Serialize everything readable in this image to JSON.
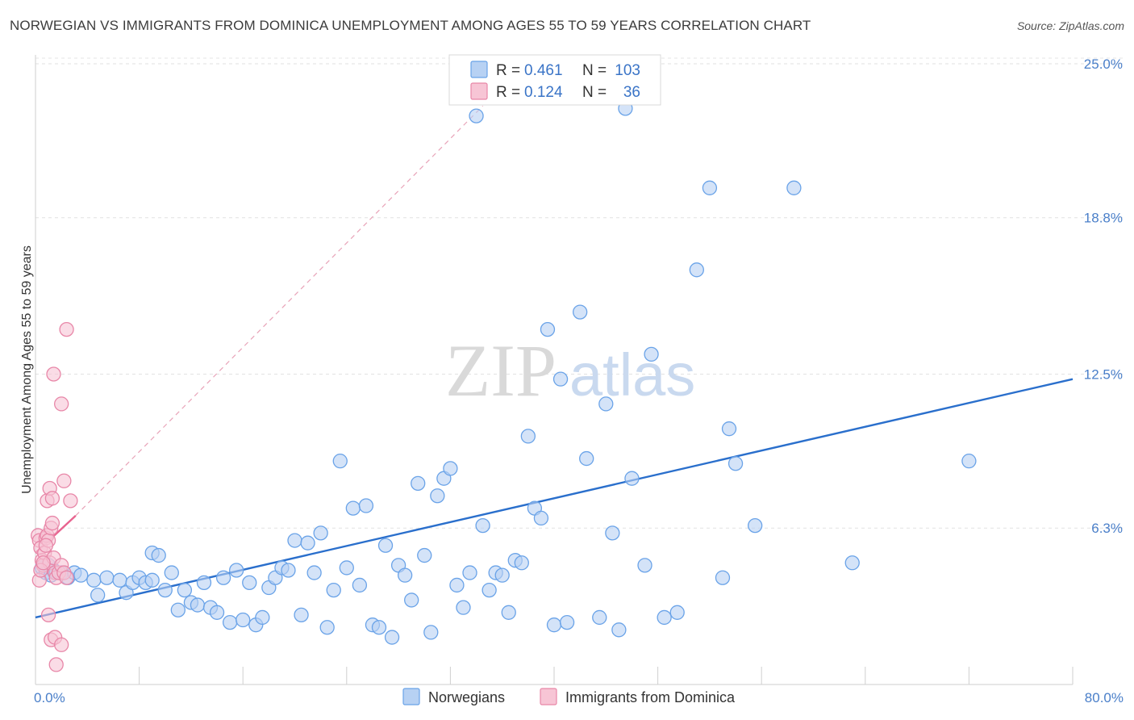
{
  "chart_data": {
    "type": "scatter",
    "title": "NORWEGIAN VS IMMIGRANTS FROM DOMINICA UNEMPLOYMENT AMONG AGES 55 TO 59 YEARS CORRELATION CHART",
    "source": "Source: ZipAtlas.com",
    "xlabel": "",
    "ylabel": "Unemployment Among Ages 55 to 59 years",
    "xlim": [
      0,
      80
    ],
    "ylim": [
      0,
      25
    ],
    "x_tick_labels": [
      "0.0%",
      "80.0%"
    ],
    "y_ticks": [
      6.3,
      12.5,
      18.8,
      25.0
    ],
    "y_tick_labels": [
      "6.3%",
      "12.5%",
      "18.8%",
      "25.0%"
    ],
    "grid": true,
    "legend_position": "top-center",
    "watermark": {
      "zip": "ZIP",
      "atlas": "atlas"
    },
    "stats_legend": [
      {
        "r_label": "R =",
        "r_value": "0.461",
        "n_label": "N =",
        "n_value": "103"
      },
      {
        "r_label": "R =",
        "r_value": "0.124",
        "n_label": "N =",
        "n_value": "36"
      }
    ],
    "series": [
      {
        "name": "Norwegians",
        "color": "#6aa3e8",
        "fill": "#b7d1f3",
        "trend": {
          "x": [
            0,
            80
          ],
          "y": [
            2.7,
            12.3
          ],
          "color": "#2a6fcc"
        },
        "points": [
          [
            0.5,
            4.7
          ],
          [
            0.8,
            4.5
          ],
          [
            1,
            4.8
          ],
          [
            1.2,
            4.4
          ],
          [
            1.4,
            4.6
          ],
          [
            1.6,
            4.5
          ],
          [
            2,
            4.5
          ],
          [
            2.5,
            4.3
          ],
          [
            3,
            4.5
          ],
          [
            3.5,
            4.4
          ],
          [
            4.5,
            4.2
          ],
          [
            5.5,
            4.3
          ],
          [
            4.8,
            3.6
          ],
          [
            6.5,
            4.2
          ],
          [
            7,
            3.7
          ],
          [
            7.5,
            4.1
          ],
          [
            8,
            4.3
          ],
          [
            8.5,
            4.1
          ],
          [
            9,
            4.2
          ],
          [
            9,
            5.3
          ],
          [
            9.5,
            5.2
          ],
          [
            10,
            3.8
          ],
          [
            10.5,
            4.5
          ],
          [
            11,
            3.0
          ],
          [
            11.5,
            3.8
          ],
          [
            12,
            3.3
          ],
          [
            12.5,
            3.2
          ],
          [
            13,
            4.1
          ],
          [
            13.5,
            3.1
          ],
          [
            14,
            2.9
          ],
          [
            14.5,
            4.3
          ],
          [
            15,
            2.5
          ],
          [
            15.5,
            4.6
          ],
          [
            16,
            2.6
          ],
          [
            16.5,
            4.1
          ],
          [
            17,
            2.4
          ],
          [
            17.5,
            2.7
          ],
          [
            18,
            3.9
          ],
          [
            18.5,
            4.3
          ],
          [
            19,
            4.7
          ],
          [
            19.5,
            4.6
          ],
          [
            20,
            5.8
          ],
          [
            20.5,
            2.8
          ],
          [
            21,
            5.7
          ],
          [
            21.5,
            4.5
          ],
          [
            22,
            6.1
          ],
          [
            22.5,
            2.3
          ],
          [
            23,
            3.8
          ],
          [
            23.5,
            9.0
          ],
          [
            24,
            4.7
          ],
          [
            24.5,
            7.1
          ],
          [
            25,
            4.0
          ],
          [
            25.5,
            7.2
          ],
          [
            26,
            2.4
          ],
          [
            26.5,
            2.3
          ],
          [
            27,
            5.6
          ],
          [
            27.5,
            1.9
          ],
          [
            28,
            4.8
          ],
          [
            28.5,
            4.4
          ],
          [
            29,
            3.4
          ],
          [
            29.5,
            8.1
          ],
          [
            30,
            5.2
          ],
          [
            30.5,
            2.1
          ],
          [
            31,
            7.6
          ],
          [
            31.5,
            8.3
          ],
          [
            32,
            8.7
          ],
          [
            32.5,
            4.0
          ],
          [
            33,
            3.1
          ],
          [
            33.5,
            4.5
          ],
          [
            34,
            22.9
          ],
          [
            34.5,
            6.4
          ],
          [
            35,
            3.8
          ],
          [
            35.5,
            4.5
          ],
          [
            36,
            4.4
          ],
          [
            36.5,
            2.9
          ],
          [
            37,
            5.0
          ],
          [
            37.5,
            4.9
          ],
          [
            38,
            10.0
          ],
          [
            38.5,
            7.1
          ],
          [
            39,
            6.7
          ],
          [
            39.5,
            14.3
          ],
          [
            40,
            2.4
          ],
          [
            40.5,
            12.3
          ],
          [
            41,
            2.5
          ],
          [
            42,
            15.0
          ],
          [
            42.5,
            9.1
          ],
          [
            43.5,
            2.7
          ],
          [
            44,
            11.3
          ],
          [
            44.5,
            6.1
          ],
          [
            45,
            2.2
          ],
          [
            45.5,
            23.2
          ],
          [
            46,
            8.3
          ],
          [
            47,
            4.8
          ],
          [
            47.5,
            13.3
          ],
          [
            48.5,
            2.7
          ],
          [
            49.5,
            2.9
          ],
          [
            51,
            16.7
          ],
          [
            52,
            20.0
          ],
          [
            53,
            4.3
          ],
          [
            53.5,
            10.3
          ],
          [
            54,
            8.9
          ],
          [
            55.5,
            6.4
          ],
          [
            58.5,
            20.0
          ],
          [
            63,
            4.9
          ],
          [
            72,
            9.0
          ]
        ]
      },
      {
        "name": "Immigrants from Dominica",
        "color": "#e887a8",
        "fill": "#f7c5d5",
        "trend": {
          "x": [
            0,
            3.1
          ],
          "y": [
            5.3,
            6.8
          ],
          "color": "#e8638f",
          "extension": {
            "x": [
              3.1,
              34.5
            ],
            "y": [
              6.8,
              23.3
            ],
            "style": "dashed",
            "color": "#e8a3b8"
          }
        },
        "points": [
          [
            0.2,
            6.0
          ],
          [
            0.3,
            5.8
          ],
          [
            0.4,
            5.5
          ],
          [
            0.5,
            5.0
          ],
          [
            0.6,
            4.8
          ],
          [
            0.7,
            5.3
          ],
          [
            0.8,
            5.9
          ],
          [
            0.9,
            6.0
          ],
          [
            1.0,
            5.8
          ],
          [
            1.1,
            4.9
          ],
          [
            1.2,
            6.3
          ],
          [
            1.3,
            6.5
          ],
          [
            1.4,
            5.1
          ],
          [
            1.5,
            4.5
          ],
          [
            1.6,
            4.3
          ],
          [
            1.8,
            4.5
          ],
          [
            2.0,
            4.8
          ],
          [
            2.2,
            4.5
          ],
          [
            2.4,
            4.3
          ],
          [
            0.3,
            4.2
          ],
          [
            0.4,
            4.6
          ],
          [
            0.6,
            4.9
          ],
          [
            0.8,
            5.6
          ],
          [
            0.9,
            7.4
          ],
          [
            1.1,
            7.9
          ],
          [
            1.3,
            7.5
          ],
          [
            1.4,
            12.5
          ],
          [
            2.0,
            11.3
          ],
          [
            2.2,
            8.2
          ],
          [
            2.4,
            14.3
          ],
          [
            2.7,
            7.4
          ],
          [
            1.0,
            2.8
          ],
          [
            1.2,
            1.8
          ],
          [
            1.5,
            1.9
          ],
          [
            2.0,
            1.6
          ],
          [
            1.6,
            0.8
          ]
        ]
      }
    ]
  }
}
